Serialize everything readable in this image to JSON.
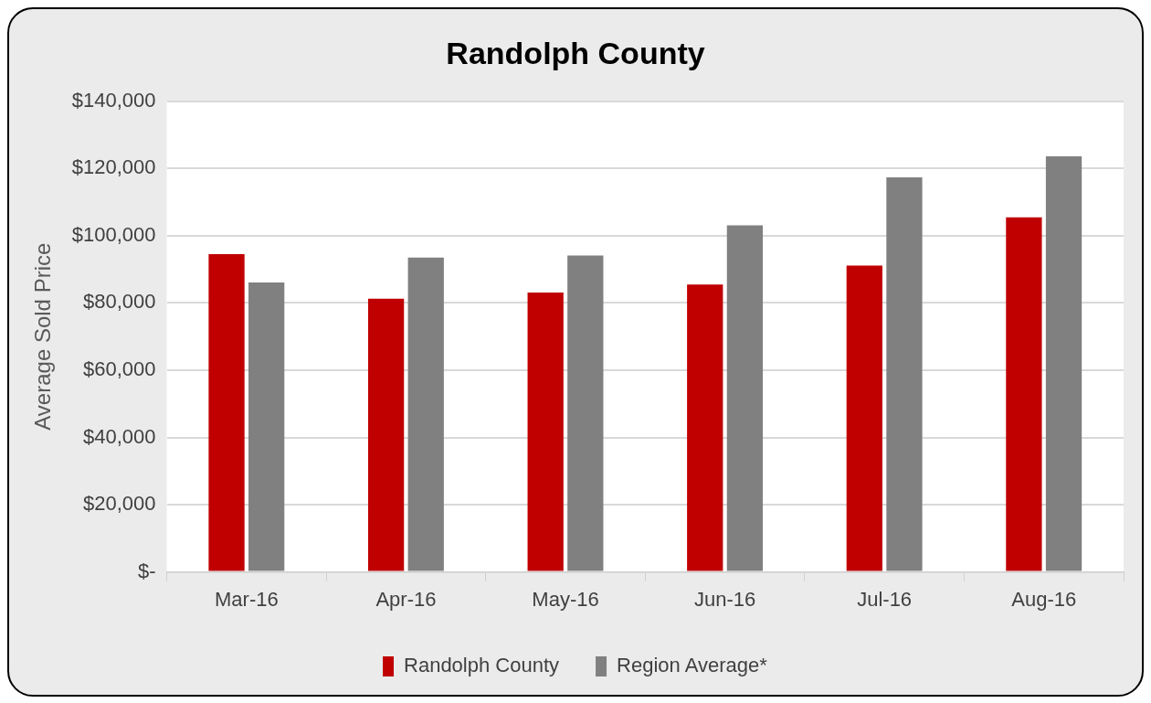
{
  "chart_data": {
    "type": "bar",
    "title": "Randolph County",
    "ylabel": "Average Sold Price",
    "categories": [
      "Mar-16",
      "Apr-16",
      "May-16",
      "Jun-16",
      "Jul-16",
      "Aug-16"
    ],
    "series": [
      {
        "name": "Randolph County",
        "color": "#c00000",
        "values": [
          94500,
          81300,
          83100,
          85500,
          91100,
          105500
        ]
      },
      {
        "name": "Region Average*",
        "color": "#808080",
        "values": [
          86100,
          93500,
          94100,
          103100,
          117400,
          123600
        ]
      }
    ],
    "ylim": [
      0,
      140000
    ],
    "yticks": [
      {
        "value": 0,
        "label": "$-"
      },
      {
        "value": 20000,
        "label": "$20,000"
      },
      {
        "value": 40000,
        "label": "$40,000"
      },
      {
        "value": 60000,
        "label": "$60,000"
      },
      {
        "value": 80000,
        "label": "$80,000"
      },
      {
        "value": 100000,
        "label": "$100,000"
      },
      {
        "value": 120000,
        "label": "$120,000"
      },
      {
        "value": 140000,
        "label": "$140,000"
      }
    ],
    "grid": "y",
    "legend": "bottom"
  }
}
